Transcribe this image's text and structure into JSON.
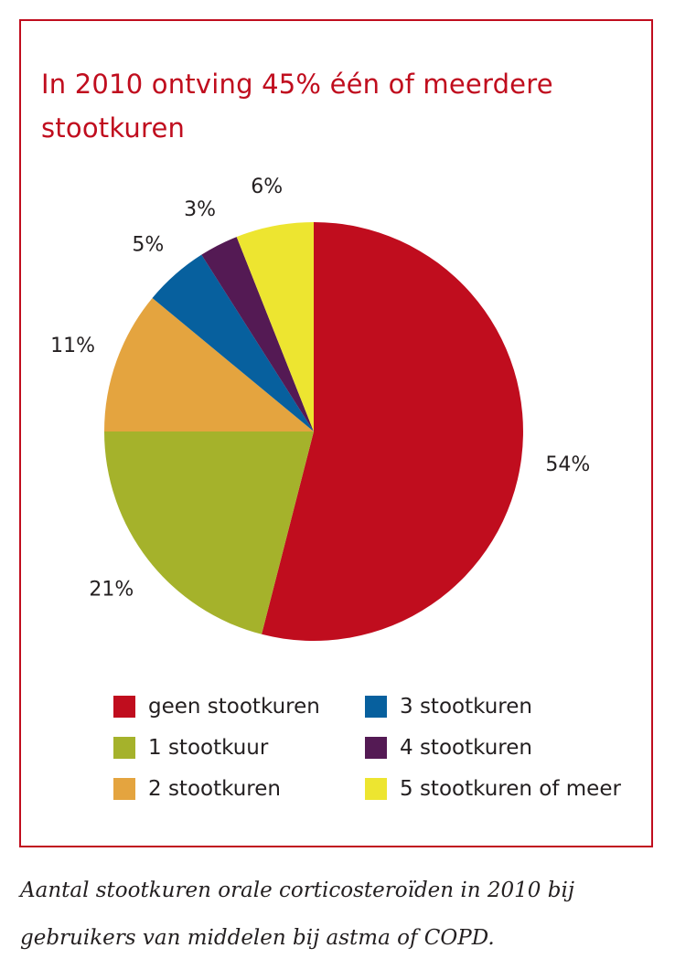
{
  "title": "In 2010 ontving 45% één of meerdere stootkuren",
  "caption_line1": "Aantal stootkuren orale corticosteroïden in 2010 bij",
  "caption_line2": "gebruikers van middelen bij astma of COPD.",
  "chart_data": {
    "type": "pie",
    "title": "In 2010 ontving 45% één of meerdere stootkuren",
    "start": "12 o'clock",
    "direction": "clockwise",
    "slices": [
      {
        "label": "geen stootkuren",
        "value": 54,
        "display": "54%",
        "color": "#c00d1e"
      },
      {
        "label": "1 stootkuur",
        "value": 21,
        "display": "21%",
        "color": "#a5b22b"
      },
      {
        "label": "2 stootkuren",
        "value": 11,
        "display": "11%",
        "color": "#e4a43f"
      },
      {
        "label": "3 stootkuren",
        "value": 5,
        "display": "5%",
        "color": "#07609e"
      },
      {
        "label": "4 stootkuren",
        "value": 3,
        "display": "3%",
        "color": "#541a54"
      },
      {
        "label": "5 stootkuren of meer",
        "value": 6,
        "display": "6%",
        "color": "#ede530"
      }
    ],
    "legend_placement": "bottom"
  }
}
